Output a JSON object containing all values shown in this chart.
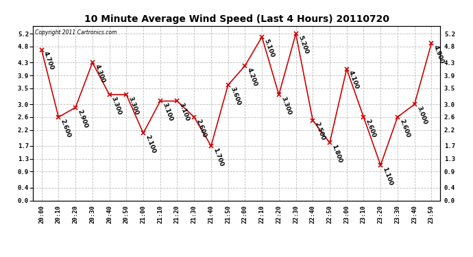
{
  "title": "10 Minute Average Wind Speed (Last 4 Hours) 20110720",
  "copyright": "Copyright 2011 Cartronics.com",
  "times": [
    "20:00",
    "20:10",
    "20:20",
    "20:30",
    "20:40",
    "20:50",
    "21:00",
    "21:10",
    "21:20",
    "21:30",
    "21:40",
    "21:50",
    "22:00",
    "22:10",
    "22:20",
    "22:30",
    "22:40",
    "22:50",
    "23:00",
    "23:10",
    "23:20",
    "23:30",
    "23:40",
    "23:50"
  ],
  "values": [
    4.7,
    2.6,
    2.9,
    4.3,
    3.3,
    3.3,
    2.1,
    3.1,
    3.1,
    2.6,
    1.7,
    3.6,
    4.2,
    5.1,
    3.3,
    5.2,
    2.5,
    1.8,
    4.1,
    2.6,
    1.1,
    2.6,
    3.0,
    4.9
  ],
  "line_color": "#cc0000",
  "marker_color": "#cc0000",
  "bg_color": "#ffffff",
  "grid_color": "#bbbbbb",
  "ylim": [
    0.0,
    5.45
  ],
  "yticks": [
    0.0,
    0.4,
    0.9,
    1.3,
    1.7,
    2.2,
    2.6,
    3.0,
    3.5,
    3.9,
    4.3,
    4.8,
    5.2
  ],
  "title_fontsize": 10,
  "tick_fontsize": 6.5,
  "annot_fontsize": 6.5
}
